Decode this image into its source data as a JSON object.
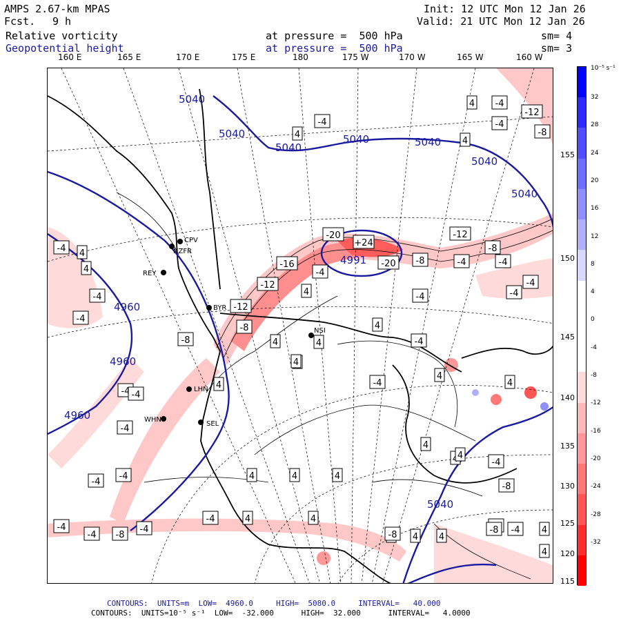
{
  "header": {
    "model": "AMPS 2.67-km MPAS",
    "fcst_label": "Fcst.",
    "fcst_value": "9 h",
    "init": "Init: 12 UTC Mon 12 Jan 26",
    "valid": "Valid: 21 UTC Mon 12 Jan 26",
    "field1": "Relative vorticity",
    "field1_pressure": "at pressure =  500 hPa",
    "field1_sm": "sm= 4",
    "field2": "Geopotential height",
    "field2_pressure": "at pressure =  500 hPa",
    "field2_sm": "sm= 3"
  },
  "longitude_labels": [
    "160 E",
    "165 E",
    "170 E",
    "175 E",
    "180",
    "175 W",
    "170 W",
    "165 W",
    "160 W"
  ],
  "latitude_labels": [
    "155 W",
    "150 W",
    "145 W",
    "140 W",
    "135 W",
    "130 W",
    "125 W",
    "120 W",
    "115 W"
  ],
  "colorbar": {
    "unit": "10⁻⁵ s⁻¹",
    "ticks": [
      "32",
      "28",
      "24",
      "20",
      "16",
      "12",
      "8",
      "4",
      "0",
      "-4",
      "-8",
      "-12",
      "-16",
      "-20",
      "-24",
      "-28",
      "-32"
    ],
    "colors": [
      "#0000ff",
      "#2a2aff",
      "#4f4fff",
      "#6f6fff",
      "#8f8fff",
      "#b0b0ff",
      "#d8d8ff",
      "#ffffff",
      "#ffffff",
      "#ffffff",
      "#ffdada",
      "#ffb8b8",
      "#ff9898",
      "#ff7878",
      "#ff5555",
      "#ff2e2e",
      "#ff0000"
    ]
  },
  "height_contours": {
    "labels": [
      "5040",
      "5040",
      "5040",
      "5040",
      "5040",
      "5040",
      "5040",
      "4960",
      "4960",
      "4960",
      "4991",
      "5040"
    ],
    "color": "#1a1aa0"
  },
  "stations": [
    "CPV",
    "NZFR",
    "REY",
    "BYR",
    "NSI",
    "LHN",
    "SEL",
    "WHN"
  ],
  "vort_labels": [
    "4",
    "-4",
    "-12",
    "-8",
    "4",
    "-4",
    "4",
    "-4",
    "-4",
    "-20",
    "+24",
    "-20",
    "-8",
    "-4",
    "-12",
    "-8",
    "-16",
    "-12",
    "-4",
    "4",
    "-12",
    "-8",
    "-4",
    "-4",
    "4",
    "-4",
    "-4",
    "-8",
    "4",
    "4",
    "4",
    "4",
    "-4",
    "4",
    "-4",
    "4",
    "4",
    "4",
    "4",
    "4",
    "4",
    "4",
    "4",
    "-4",
    "-8",
    "-8",
    "-8",
    "-4",
    "-4",
    "4",
    "4",
    "4",
    "4",
    "4",
    "-4",
    "-4",
    "-8",
    "-4",
    "-8",
    "4",
    "4",
    "4",
    "-4",
    "-4",
    "-4",
    "-4",
    "-4",
    "-4",
    "-4",
    "4"
  ],
  "footer": {
    "line1": "CONTOURS:  UNITS=m  LOW=  4960.0     HIGH=  5080.0     INTERVAL=   40.000",
    "line2": "CONTOURS:  UNITS=10⁻⁵ s⁻¹  LOW=  -32.000      HIGH=  32.000      INTERVAL=   4.0000"
  }
}
